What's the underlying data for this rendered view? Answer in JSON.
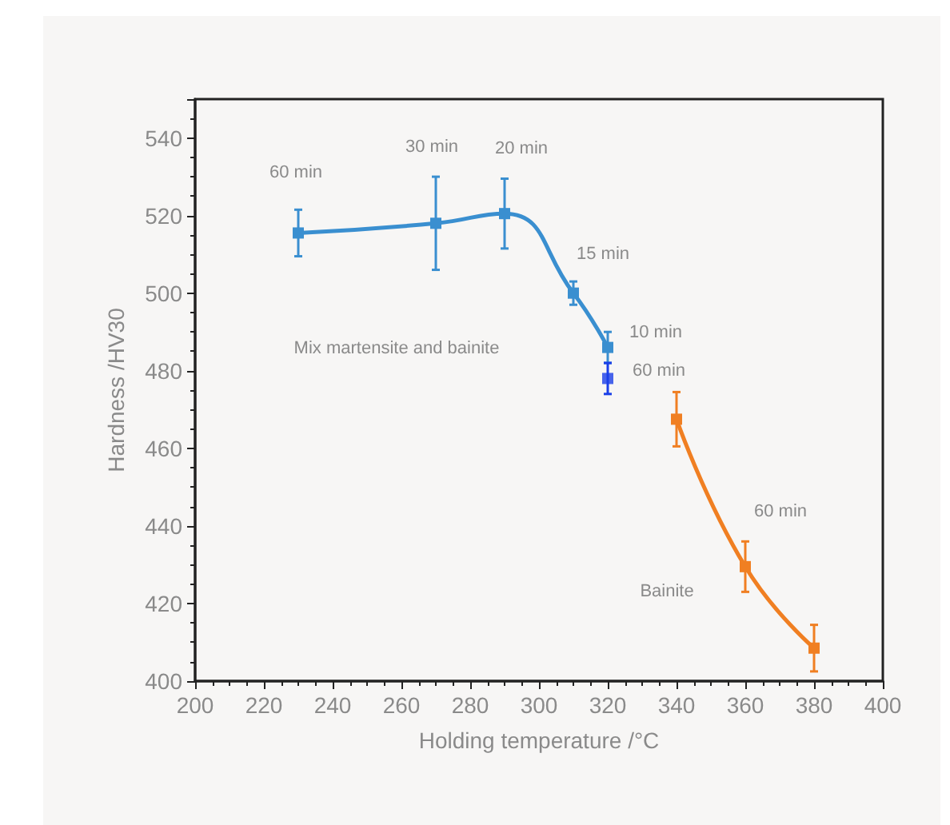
{
  "chart_data": {
    "type": "line",
    "xlabel": "Holding temperature /°C",
    "ylabel": "Hardness /HV30",
    "series": [
      {
        "color": "#3a8fd0",
        "x": [
          230,
          270,
          290,
          310,
          320
        ],
        "values": [
          515.5,
          518,
          520.5,
          500,
          486
        ],
        "errors": [
          6,
          12,
          9,
          3,
          4
        ]
      },
      {
        "type": "scatter",
        "color": "#1a3fe8",
        "x": [
          320
        ],
        "values": [
          478
        ],
        "errors": [
          4
        ]
      },
      {
        "color": "#f07f22",
        "x": [
          340,
          360,
          380
        ],
        "values": [
          467.5,
          429.5,
          408.5
        ],
        "errors": [
          7,
          6.5,
          6
        ]
      }
    ],
    "annotations": [
      "60 min",
      "30 min",
      "20 min",
      "15 min",
      "10 min",
      "60 min",
      "Mix martensite and bainite",
      "60 min",
      "Bainite"
    ],
    "xlim": [
      200,
      400
    ],
    "xticks": [
      200,
      220,
      240,
      260,
      280,
      300,
      320,
      340,
      360,
      380,
      400
    ],
    "ylim": [
      400,
      550
    ],
    "yticks": [
      400,
      420,
      440,
      460,
      480,
      500,
      520,
      540
    ],
    "marker": "square",
    "grid": false
  }
}
